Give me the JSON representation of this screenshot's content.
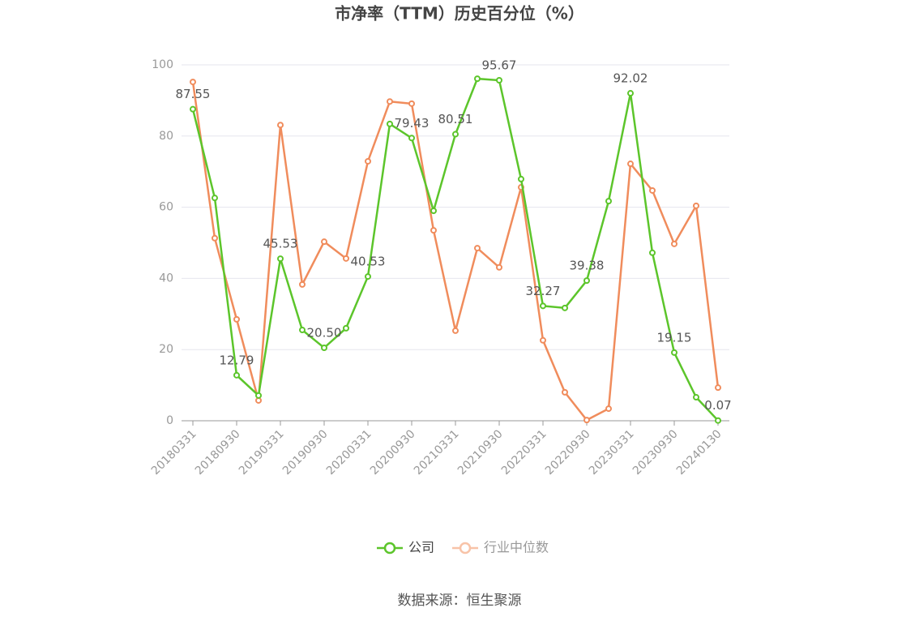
{
  "chart_data": {
    "type": "line",
    "title": "市净率（TTM）历史百分位（%）",
    "source": "数据来源：恒生聚源",
    "categories": [
      "20180331",
      null,
      "20180930",
      null,
      "20190331",
      null,
      "20190930",
      null,
      "20200331",
      null,
      "20200930",
      null,
      "20210331",
      null,
      "20210930",
      null,
      "20220331",
      null,
      "20220930",
      null,
      "20230331",
      null,
      "20230930",
      null,
      "20240130"
    ],
    "series": [
      {
        "name": "公司",
        "color": "#5cc52b",
        "values": [
          87.55,
          62.6,
          12.79,
          7.1,
          45.53,
          25.5,
          20.5,
          26.0,
          40.53,
          83.4,
          79.43,
          59.0,
          80.51,
          96.1,
          95.67,
          67.9,
          32.27,
          31.7,
          39.38,
          61.7,
          92.02,
          47.2,
          19.15,
          6.6,
          0.07
        ],
        "value_labels": [
          "87.55",
          null,
          "12.79",
          null,
          "45.53",
          null,
          "20.50",
          null,
          "40.53",
          null,
          "79.43",
          null,
          "80.51",
          null,
          "95.67",
          null,
          "32.27",
          null,
          "39.38",
          null,
          "92.02",
          null,
          "19.15",
          null,
          "0.07"
        ]
      },
      {
        "name": "行业中位数",
        "color": "#f08c5c",
        "values": [
          95.2,
          51.3,
          28.5,
          5.7,
          83.1,
          38.3,
          50.3,
          45.6,
          72.9,
          89.7,
          89.1,
          53.5,
          25.3,
          48.5,
          43.1,
          65.6,
          22.6,
          8.0,
          0.2,
          3.4,
          72.2,
          64.7,
          49.7,
          60.4,
          9.3
        ]
      }
    ],
    "ylim": [
      0,
      100
    ],
    "yticks": [
      0,
      20,
      40,
      60,
      80,
      100
    ],
    "grid": true
  }
}
